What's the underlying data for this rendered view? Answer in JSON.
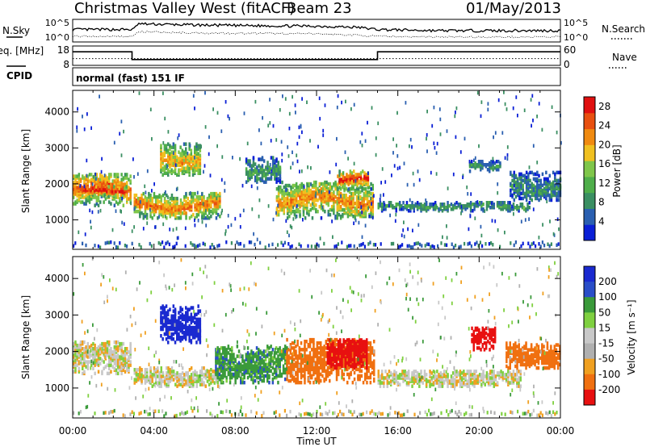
{
  "header": {
    "station": "Christmas Valley West (fitACF)",
    "beam": "Beam 23",
    "date": "01/May/2013"
  },
  "colors": {
    "power_scale": [
      "#0a1fd6",
      "#2a5fb0",
      "#3a8f62",
      "#4fae4a",
      "#7fc64a",
      "#f0c020",
      "#f08a10",
      "#e85010",
      "#e01010"
    ],
    "velocity_scale": [
      "#1a2ad0",
      "#2a4ec8",
      "#3a9a3a",
      "#7fd040",
      "#c8c8c8",
      "#b0b0b0",
      "#f0a020",
      "#f07010",
      "#e81010"
    ]
  },
  "chart_data": [
    {
      "type": "line",
      "panel": "noise",
      "ylabel_left": "N.Sky",
      "ylabel_right": "N.Search",
      "left_ticks": [
        "10^5",
        "10^0"
      ],
      "right_ticks": [
        "10^5",
        "10^0"
      ],
      "series": [
        {
          "name": "N.Sky",
          "x": [
            0,
            3,
            3.2,
            6,
            9,
            12,
            14,
            15,
            18,
            21,
            24
          ],
          "y": [
            0.55,
            0.55,
            0.8,
            0.75,
            0.72,
            0.7,
            0.65,
            0.55,
            0.5,
            0.5,
            0.5
          ]
        },
        {
          "name": "N.Search",
          "x": [
            0,
            3,
            3.2,
            6,
            9,
            12,
            14,
            15,
            18,
            21,
            24
          ],
          "y": [
            0.25,
            0.25,
            0.45,
            0.4,
            0.38,
            0.36,
            0.3,
            0.25,
            0.22,
            0.22,
            0.22
          ]
        }
      ]
    },
    {
      "type": "line",
      "panel": "frequency",
      "ylabel_left": "Freq. [MHz]",
      "ylabel_right": "Nave",
      "left_ticks": [
        "18",
        "8"
      ],
      "right_ticks": [
        "60",
        "0"
      ],
      "series": [
        {
          "name": "Freq.",
          "x": [
            0,
            2.92,
            2.92,
            15.0,
            15.0,
            24
          ],
          "y": [
            15.0,
            15.0,
            11.0,
            11.0,
            15.0,
            15.0
          ]
        },
        {
          "name": "Nave",
          "x": [
            0,
            24
          ],
          "y": [
            11.5,
            11.5
          ]
        }
      ]
    },
    {
      "type": "table",
      "panel": "cpid",
      "label": "CPID",
      "value": "normal (fast) 151 IF"
    },
    {
      "type": "heatmap",
      "panel": "power",
      "ylabel": "Slant Range [km]",
      "xlim": [
        0,
        24
      ],
      "ylim": [
        180,
        4600
      ],
      "yticks": [
        1000,
        2000,
        3000,
        4000
      ],
      "colorbar": {
        "label": "Power [dB]",
        "ticks": [
          4,
          8,
          12,
          16,
          20,
          24,
          28
        ],
        "range": [
          0,
          30
        ]
      },
      "regions": [
        {
          "x0": 0.0,
          "x1": 2.8,
          "r_lo": 1350,
          "r_hi": 2250,
          "level": 0.85
        },
        {
          "x0": 0.5,
          "x1": 2.6,
          "r_lo": 1600,
          "r_hi": 1900,
          "level": 1.0
        },
        {
          "x0": 3.0,
          "x1": 7.2,
          "r_lo": 1000,
          "r_hi": 1700,
          "level": 0.8
        },
        {
          "x0": 4.3,
          "x1": 6.3,
          "r_lo": 2200,
          "r_hi": 3100,
          "level": 0.7
        },
        {
          "x0": 8.5,
          "x1": 10.2,
          "r_lo": 2000,
          "r_hi": 2700,
          "level": 0.35
        },
        {
          "x0": 10.0,
          "x1": 14.8,
          "r_lo": 1000,
          "r_hi": 2000,
          "level": 0.75
        },
        {
          "x0": 13.0,
          "x1": 14.5,
          "r_lo": 1800,
          "r_hi": 2300,
          "level": 0.9
        },
        {
          "x0": 15.0,
          "x1": 22.5,
          "r_lo": 1200,
          "r_hi": 1450,
          "level": 0.35
        },
        {
          "x0": 19.5,
          "x1": 21.0,
          "r_lo": 2300,
          "r_hi": 2600,
          "level": 0.3
        },
        {
          "x0": 21.5,
          "x1": 24.0,
          "r_lo": 1500,
          "r_hi": 2300,
          "level": 0.3
        }
      ]
    },
    {
      "type": "heatmap",
      "panel": "velocity",
      "ylabel": "Slant Range [km]",
      "xlim": [
        0,
        24
      ],
      "ylim": [
        180,
        4600
      ],
      "yticks": [
        1000,
        2000,
        3000,
        4000
      ],
      "xticks": [
        "00:00",
        "04:00",
        "08:00",
        "12:00",
        "16:00",
        "20:00",
        "00:00"
      ],
      "xlabel": "Time UT",
      "colorbar": {
        "label": "Velocity [m s⁻¹]",
        "ticks": [
          200,
          100,
          50,
          15,
          -15,
          -50,
          -100,
          -200
        ]
      },
      "regions": [
        {
          "x0": 0.0,
          "x1": 2.8,
          "r_lo": 1350,
          "r_hi": 2250,
          "vel": 0.0
        },
        {
          "x0": 3.0,
          "x1": 7.2,
          "r_lo": 1000,
          "r_hi": 1500,
          "vel": 0.2
        },
        {
          "x0": 4.3,
          "x1": 6.3,
          "r_lo": 2200,
          "r_hi": 3200,
          "vel": 200
        },
        {
          "x0": 7.0,
          "x1": 10.5,
          "r_lo": 1100,
          "r_hi": 2100,
          "vel": 60
        },
        {
          "x0": 10.5,
          "x1": 14.8,
          "r_lo": 1100,
          "r_hi": 2300,
          "vel": -80
        },
        {
          "x0": 12.5,
          "x1": 14.5,
          "r_lo": 1500,
          "r_hi": 2300,
          "vel": -200
        },
        {
          "x0": 15.0,
          "x1": 22.0,
          "r_lo": 1000,
          "r_hi": 1450,
          "vel": 0.0
        },
        {
          "x0": 19.6,
          "x1": 20.8,
          "r_lo": 2000,
          "r_hi": 2600,
          "vel": -200
        },
        {
          "x0": 21.3,
          "x1": 24.0,
          "r_lo": 1500,
          "r_hi": 2200,
          "vel": -80
        }
      ]
    }
  ]
}
